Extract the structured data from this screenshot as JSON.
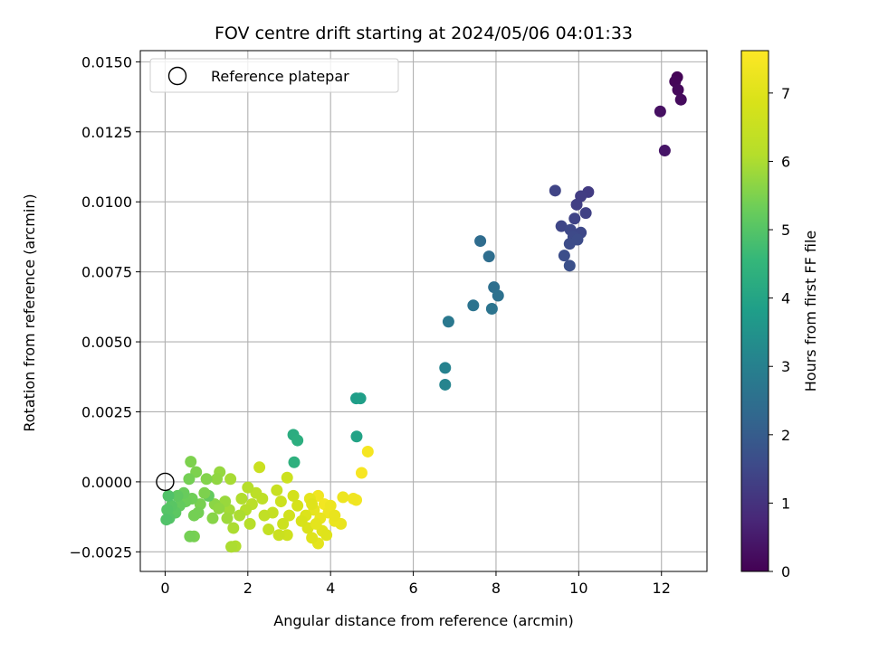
{
  "chart_data": {
    "type": "scatter",
    "title": "FOV centre drift starting at 2024/05/06 04:01:33",
    "xlabel": "Angular distance from reference (arcmin)",
    "ylabel": "Rotation from reference (arcmin)",
    "xlim": [
      -0.6,
      13.1
    ],
    "ylim": [
      -0.0032,
      0.0154
    ],
    "x_ticks": [
      0,
      2,
      4,
      6,
      8,
      10,
      12
    ],
    "x_tick_labels": [
      "0",
      "2",
      "4",
      "6",
      "8",
      "10",
      "12"
    ],
    "y_ticks": [
      -0.0025,
      0.0,
      0.0025,
      0.005,
      0.0075,
      0.01,
      0.0125,
      0.015
    ],
    "y_tick_labels": [
      "−0.0025",
      "0.0000",
      "0.0025",
      "0.0050",
      "0.0075",
      "0.0100",
      "0.0125",
      "0.0150"
    ],
    "grid": true,
    "legend": {
      "placement": "top-left",
      "entries": [
        {
          "label": "Reference platepar",
          "marker": "open-circle"
        }
      ]
    },
    "reference_point": {
      "x": 0,
      "y": 0
    },
    "colorbar": {
      "label": "Hours from first FF file",
      "colormap": "viridis",
      "range": [
        0,
        7.62
      ],
      "ticks": [
        0,
        1,
        2,
        3,
        4,
        5,
        6,
        7
      ],
      "tick_labels": [
        "0",
        "1",
        "2",
        "3",
        "4",
        "5",
        "6",
        "7"
      ]
    },
    "points": [
      {
        "x": 12.38,
        "y": 0.01445,
        "c": 0.05
      },
      {
        "x": 12.33,
        "y": 0.0143,
        "c": 0.1
      },
      {
        "x": 12.4,
        "y": 0.014,
        "c": 0.15
      },
      {
        "x": 12.47,
        "y": 0.01365,
        "c": 0.2
      },
      {
        "x": 11.97,
        "y": 0.01323,
        "c": 0.3
      },
      {
        "x": 12.08,
        "y": 0.01183,
        "c": 0.4
      },
      {
        "x": 9.43,
        "y": 0.0104,
        "c": 1.4
      },
      {
        "x": 10.23,
        "y": 0.01035,
        "c": 1.2
      },
      {
        "x": 10.05,
        "y": 0.0102,
        "c": 1.25
      },
      {
        "x": 9.95,
        "y": 0.0099,
        "c": 1.3
      },
      {
        "x": 10.17,
        "y": 0.0096,
        "c": 1.35
      },
      {
        "x": 9.9,
        "y": 0.0094,
        "c": 1.4
      },
      {
        "x": 9.58,
        "y": 0.00913,
        "c": 1.45
      },
      {
        "x": 9.8,
        "y": 0.009,
        "c": 1.5
      },
      {
        "x": 10.05,
        "y": 0.0089,
        "c": 1.5
      },
      {
        "x": 9.87,
        "y": 0.00875,
        "c": 1.55
      },
      {
        "x": 9.97,
        "y": 0.00865,
        "c": 1.6
      },
      {
        "x": 9.78,
        "y": 0.0085,
        "c": 1.6
      },
      {
        "x": 9.65,
        "y": 0.00808,
        "c": 1.65
      },
      {
        "x": 9.78,
        "y": 0.00772,
        "c": 1.7
      },
      {
        "x": 7.62,
        "y": 0.0086,
        "c": 2.4
      },
      {
        "x": 7.83,
        "y": 0.00805,
        "c": 2.45
      },
      {
        "x": 7.95,
        "y": 0.00695,
        "c": 2.5
      },
      {
        "x": 8.05,
        "y": 0.00665,
        "c": 2.55
      },
      {
        "x": 7.45,
        "y": 0.0063,
        "c": 2.6
      },
      {
        "x": 7.9,
        "y": 0.00618,
        "c": 2.65
      },
      {
        "x": 6.85,
        "y": 0.00572,
        "c": 2.75
      },
      {
        "x": 6.77,
        "y": 0.00407,
        "c": 3.05
      },
      {
        "x": 6.77,
        "y": 0.00347,
        "c": 3.1
      },
      {
        "x": 4.62,
        "y": 0.00298,
        "c": 3.8
      },
      {
        "x": 4.72,
        "y": 0.00298,
        "c": 3.85
      },
      {
        "x": 4.63,
        "y": 0.00162,
        "c": 3.95
      },
      {
        "x": 3.1,
        "y": 0.00168,
        "c": 4.25
      },
      {
        "x": 3.2,
        "y": 0.00148,
        "c": 4.3
      },
      {
        "x": 3.12,
        "y": 0.0007,
        "c": 4.35
      },
      {
        "x": 4.9,
        "y": 0.00108,
        "c": 7.45
      },
      {
        "x": 4.75,
        "y": 0.00032,
        "c": 7.5
      },
      {
        "x": 4.62,
        "y": -0.00065,
        "c": 7.4
      },
      {
        "x": 4.55,
        "y": -0.0006,
        "c": 7.35
      },
      {
        "x": 4.3,
        "y": -0.00055,
        "c": 7.3
      },
      {
        "x": 4.25,
        "y": -0.0015,
        "c": 7.2
      },
      {
        "x": 4.1,
        "y": -0.0014,
        "c": 7.25
      },
      {
        "x": 3.7,
        "y": -0.0022,
        "c": 7.1
      },
      {
        "x": 3.55,
        "y": -0.002,
        "c": 7.0
      },
      {
        "x": 3.7,
        "y": -0.0005,
        "c": 7.35
      },
      {
        "x": 3.85,
        "y": -0.0008,
        "c": 7.4
      },
      {
        "x": 3.95,
        "y": -0.0011,
        "c": 7.3
      },
      {
        "x": 3.75,
        "y": -0.0013,
        "c": 7.2
      },
      {
        "x": 3.6,
        "y": -0.001,
        "c": 7.15
      },
      {
        "x": 3.5,
        "y": -0.0006,
        "c": 7.1
      },
      {
        "x": 3.4,
        "y": -0.0012,
        "c": 6.95
      },
      {
        "x": 3.45,
        "y": -0.00165,
        "c": 6.9
      },
      {
        "x": 3.8,
        "y": -0.00175,
        "c": 7.05
      },
      {
        "x": 4.0,
        "y": -0.00085,
        "c": 7.3
      },
      {
        "x": 3.9,
        "y": -0.0019,
        "c": 7.0
      },
      {
        "x": 4.1,
        "y": -0.0012,
        "c": 7.2
      },
      {
        "x": 3.65,
        "y": -0.0015,
        "c": 7.1
      },
      {
        "x": 3.55,
        "y": -0.0008,
        "c": 7.0
      },
      {
        "x": 3.3,
        "y": -0.0014,
        "c": 6.85
      },
      {
        "x": 3.2,
        "y": -0.00085,
        "c": 6.8
      },
      {
        "x": 3.1,
        "y": -0.0005,
        "c": 6.75
      },
      {
        "x": 3.0,
        "y": -0.0012,
        "c": 6.7
      },
      {
        "x": 2.95,
        "y": -0.0019,
        "c": 6.65
      },
      {
        "x": 2.85,
        "y": -0.0015,
        "c": 6.6
      },
      {
        "x": 2.75,
        "y": -0.0019,
        "c": 6.55
      },
      {
        "x": 2.8,
        "y": -0.0007,
        "c": 6.6
      },
      {
        "x": 2.7,
        "y": -0.0003,
        "c": 6.5
      },
      {
        "x": 2.95,
        "y": 0.00015,
        "c": 6.6
      },
      {
        "x": 2.6,
        "y": -0.0011,
        "c": 6.45
      },
      {
        "x": 2.5,
        "y": -0.0017,
        "c": 6.4
      },
      {
        "x": 2.4,
        "y": -0.0012,
        "c": 6.35
      },
      {
        "x": 2.35,
        "y": -0.0006,
        "c": 6.3
      },
      {
        "x": 2.28,
        "y": 0.00052,
        "c": 6.55
      },
      {
        "x": 2.2,
        "y": -0.0004,
        "c": 6.25
      },
      {
        "x": 2.1,
        "y": -0.0008,
        "c": 6.2
      },
      {
        "x": 2.05,
        "y": -0.0015,
        "c": 6.15
      },
      {
        "x": 2.0,
        "y": -0.0002,
        "c": 6.15
      },
      {
        "x": 1.95,
        "y": -0.001,
        "c": 6.1
      },
      {
        "x": 1.85,
        "y": -0.0006,
        "c": 6.05
      },
      {
        "x": 1.8,
        "y": -0.0012,
        "c": 6.0
      },
      {
        "x": 1.65,
        "y": -0.00165,
        "c": 6.0
      },
      {
        "x": 1.7,
        "y": -0.0023,
        "c": 6.05
      },
      {
        "x": 1.6,
        "y": -0.00232,
        "c": 6.0
      },
      {
        "x": 1.55,
        "y": -0.001,
        "c": 5.9
      },
      {
        "x": 1.5,
        "y": -0.0013,
        "c": 5.85
      },
      {
        "x": 1.45,
        "y": -0.0007,
        "c": 5.8
      },
      {
        "x": 1.58,
        "y": 0.0001,
        "c": 5.95
      },
      {
        "x": 1.32,
        "y": 0.00035,
        "c": 5.75
      },
      {
        "x": 1.25,
        "y": 0.0001,
        "c": 5.7
      },
      {
        "x": 1.2,
        "y": -0.0008,
        "c": 5.65
      },
      {
        "x": 1.3,
        "y": -0.00095,
        "c": 5.7
      },
      {
        "x": 1.15,
        "y": -0.0013,
        "c": 5.6
      },
      {
        "x": 1.05,
        "y": -0.0005,
        "c": 5.2
      },
      {
        "x": 1.0,
        "y": 0.0001,
        "c": 5.55
      },
      {
        "x": 0.95,
        "y": -0.0004,
        "c": 5.5
      },
      {
        "x": 0.85,
        "y": -0.0008,
        "c": 5.45
      },
      {
        "x": 0.8,
        "y": -0.0011,
        "c": 5.4
      },
      {
        "x": 0.7,
        "y": -0.0012,
        "c": 5.4
      },
      {
        "x": 0.75,
        "y": 0.00035,
        "c": 5.5
      },
      {
        "x": 0.62,
        "y": 0.00072,
        "c": 5.5
      },
      {
        "x": 0.58,
        "y": 0.0001,
        "c": 5.4
      },
      {
        "x": 0.65,
        "y": -0.0006,
        "c": 5.35
      },
      {
        "x": 0.7,
        "y": -0.00195,
        "c": 5.45
      },
      {
        "x": 0.6,
        "y": -0.00195,
        "c": 5.4
      },
      {
        "x": 0.5,
        "y": -0.0007,
        "c": 5.3
      },
      {
        "x": 0.45,
        "y": -0.0004,
        "c": 5.25
      },
      {
        "x": 0.35,
        "y": -0.00085,
        "c": 5.2
      },
      {
        "x": 0.3,
        "y": -0.0005,
        "c": 5.15
      },
      {
        "x": 0.25,
        "y": -0.0011,
        "c": 5.1
      },
      {
        "x": 0.15,
        "y": -0.00085,
        "c": 5.05
      },
      {
        "x": 0.1,
        "y": -0.0013,
        "c": 5.0
      },
      {
        "x": 0.05,
        "y": -0.001,
        "c": 5.0
      },
      {
        "x": 0.08,
        "y": -0.0005,
        "c": 4.95
      },
      {
        "x": 0.03,
        "y": -0.00135,
        "c": 4.95
      }
    ]
  }
}
